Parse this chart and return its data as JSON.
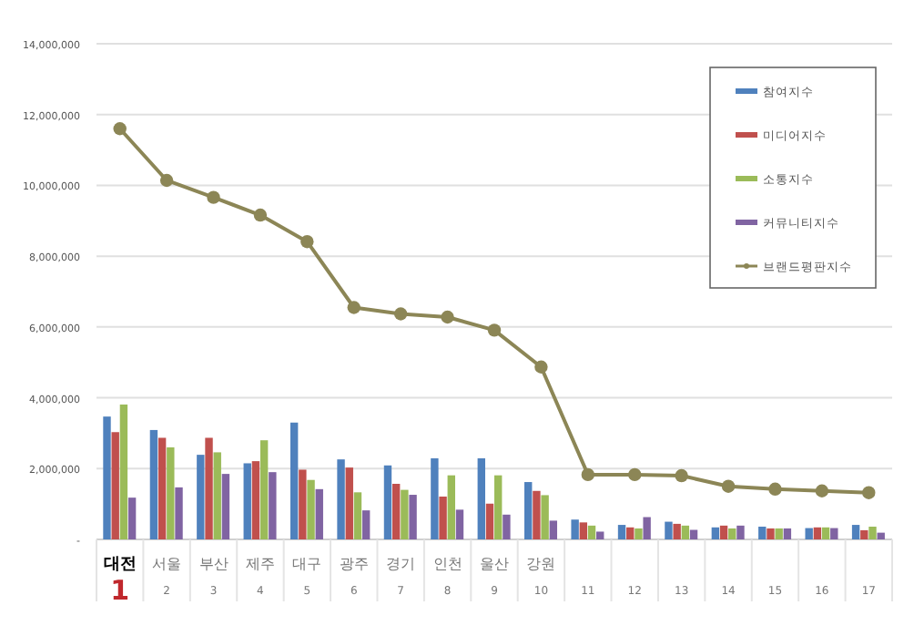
{
  "chart_data": {
    "type": "bar",
    "categories": [
      "대전\n1",
      "서울\n2",
      "부산\n3",
      "제주\n4",
      "대구\n5",
      "광주\n6",
      "경기\n7",
      "인천\n8",
      "울산\n9",
      "강원\n10",
      "\n11",
      "\n12",
      "\n13",
      "\n14",
      "\n15",
      "\n16",
      "\n17"
    ],
    "series": [
      {
        "name": "참여지수",
        "color": "#4f81bd",
        "values": [
          3470000,
          3090000,
          2390000,
          2150000,
          3300000,
          2260000,
          2090000,
          2290000,
          2290000,
          1620000,
          560000,
          410000,
          500000,
          340000,
          360000,
          320000,
          410000
        ]
      },
      {
        "name": "미디어지수",
        "color": "#c0504d",
        "values": [
          3030000,
          2870000,
          2870000,
          2210000,
          1970000,
          2030000,
          1570000,
          1210000,
          1010000,
          1370000,
          480000,
          340000,
          440000,
          390000,
          310000,
          340000,
          260000
        ]
      },
      {
        "name": "소통지수",
        "color": "#9bbb59",
        "values": [
          3810000,
          2600000,
          2460000,
          2800000,
          1680000,
          1330000,
          1400000,
          1810000,
          1810000,
          1250000,
          390000,
          310000,
          390000,
          310000,
          310000,
          340000,
          360000
        ]
      },
      {
        "name": "커뮤니티지수",
        "color": "#8064a2",
        "values": [
          1180000,
          1470000,
          1850000,
          1900000,
          1420000,
          820000,
          1260000,
          840000,
          700000,
          530000,
          220000,
          630000,
          270000,
          390000,
          310000,
          320000,
          190000
        ]
      },
      {
        "name": "브랜드평판지수",
        "color": "#8c8656",
        "type": "line",
        "marker": "circle",
        "values": [
          11600000,
          10140000,
          9660000,
          9160000,
          8410000,
          6550000,
          6370000,
          6280000,
          5910000,
          4870000,
          1830000,
          1830000,
          1800000,
          1500000,
          1420000,
          1370000,
          1320000
        ]
      }
    ],
    "ylim": [
      0,
      14000000
    ],
    "yticks": [
      {
        "value": 0,
        "label": "-"
      },
      {
        "value": 2000000,
        "label": "2,000,000"
      },
      {
        "value": 4000000,
        "label": "4,000,000"
      },
      {
        "value": 6000000,
        "label": "6,000,000"
      },
      {
        "value": 8000000,
        "label": "8,000,000"
      },
      {
        "value": 10000000,
        "label": "10,000,000"
      },
      {
        "value": 12000000,
        "label": "12,000,000"
      },
      {
        "value": 14000000,
        "label": "14,000,000"
      }
    ],
    "grid": "y",
    "legend": "top right"
  }
}
